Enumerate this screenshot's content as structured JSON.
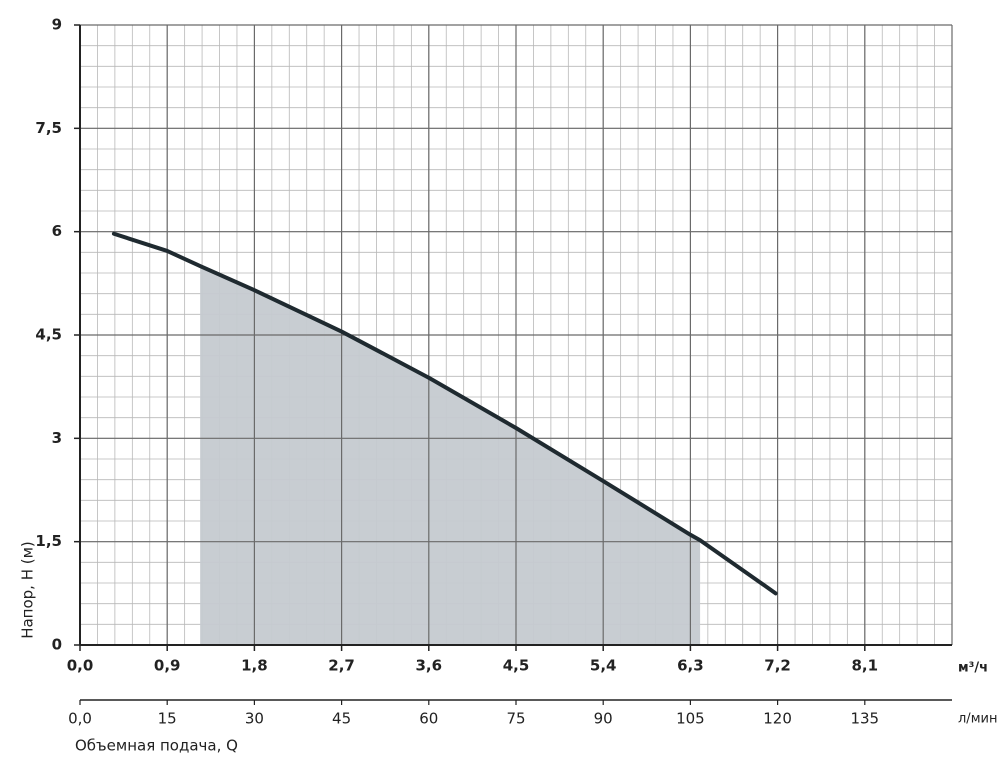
{
  "chart_data": {
    "type": "line",
    "y_label": "Напор, H (м)",
    "x_label": "Объемная подача, Q",
    "x_unit": "м³/ч",
    "x2_unit": "л/мин",
    "xlim": [
      0,
      9
    ],
    "xticks": [
      {
        "value": 0,
        "label": "0,0"
      },
      {
        "value": 0.9,
        "label": "0,9"
      },
      {
        "value": 1.8,
        "label": "1,8"
      },
      {
        "value": 2.7,
        "label": "2,7"
      },
      {
        "value": 3.6,
        "label": "3,6"
      },
      {
        "value": 4.5,
        "label": "4,5"
      },
      {
        "value": 5.4,
        "label": "5,4"
      },
      {
        "value": 6.3,
        "label": "6,3"
      },
      {
        "value": 7.2,
        "label": "7,2"
      },
      {
        "value": 8.1,
        "label": "8,1"
      }
    ],
    "x2lim": [
      0,
      150
    ],
    "x2ticks": [
      {
        "value": 0,
        "label": "0,0"
      },
      15,
      30,
      45,
      60,
      75,
      90,
      105,
      120,
      135
    ],
    "ylim": [
      0,
      9
    ],
    "yticks": [
      0,
      {
        "value": 1.5,
        "label": "1,5"
      },
      3,
      {
        "value": 4.5,
        "label": "4,5"
      },
      6,
      {
        "value": 7.5,
        "label": "7,5"
      },
      9
    ],
    "grid": true,
    "minor_divisions": 5,
    "shade": [
      1.24,
      6.4
    ],
    "shade_color": "#c5cad0",
    "series": [
      {
        "color": "#1f2a30",
        "x": [
          0.35,
          0.9,
          1.24,
          1.8,
          2.7,
          3.6,
          4.5,
          5.4,
          6.3,
          6.4,
          7.18
        ],
        "values": [
          5.97,
          5.72,
          5.5,
          5.15,
          4.55,
          3.88,
          3.15,
          2.38,
          1.6,
          1.52,
          0.75
        ]
      }
    ]
  }
}
